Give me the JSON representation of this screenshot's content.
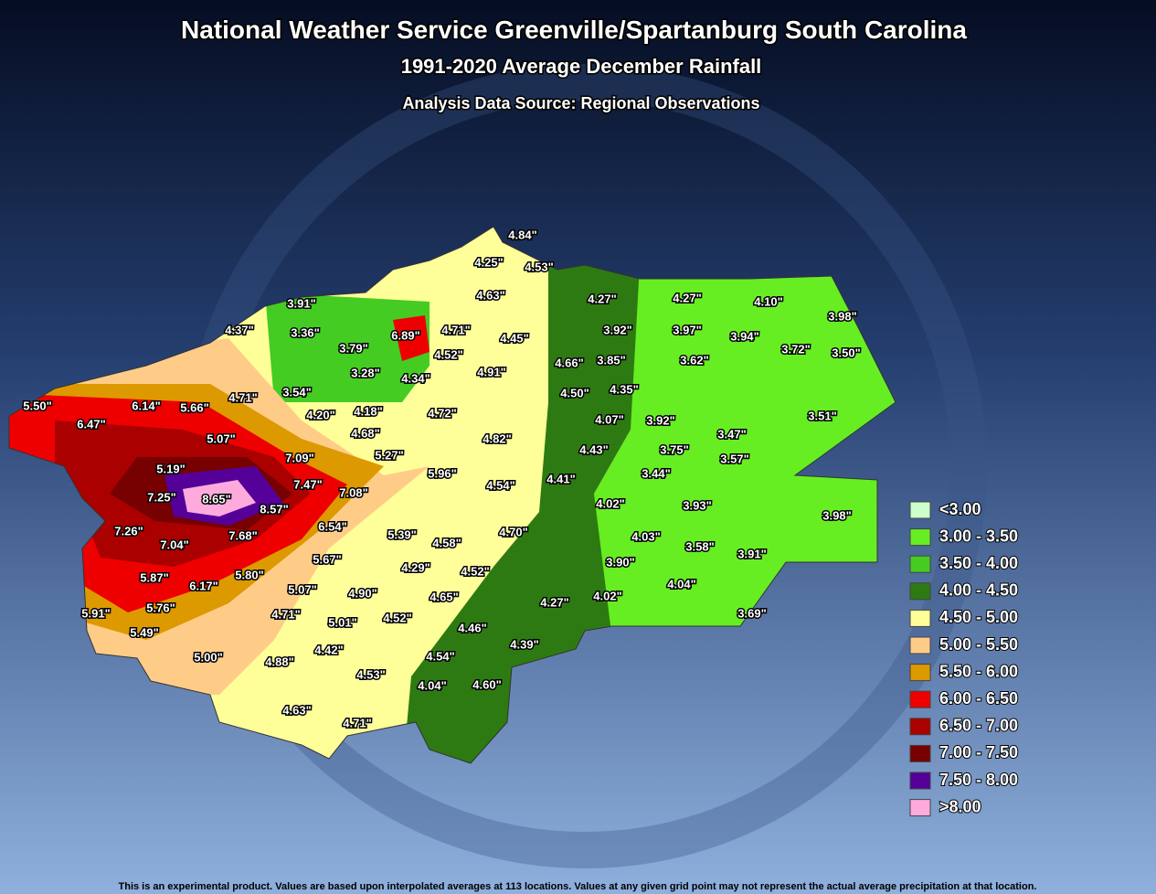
{
  "header": {
    "title": "National Weather Service Greenville/Spartanburg South Carolina",
    "subtitle": "1991-2020 Average December Rainfall",
    "source": "Analysis Data Source: Regional Observations"
  },
  "stations": [
    "4.84\"",
    "4.25\"",
    "4.53\"",
    "4.63\"",
    "4.27\"",
    "4.27\"",
    "4.10\"",
    "3.98\"",
    "3.91\"",
    "3.36\"",
    "6.89\"",
    "4.71\"",
    "3.92\"",
    "3.97\"",
    "3.94\"",
    "4.37\"",
    "3.79\"",
    "4.52\"",
    "4.45\"",
    "3.72\"",
    "3.50\"",
    "3.85\"",
    "3.62\"",
    "4.66\"",
    "3.28\"",
    "4.34\"",
    "4.91\"",
    "5.50\"",
    "6.14\"",
    "5.66\"",
    "4.71\"",
    "3.54\"",
    "4.50\"",
    "4.35\"",
    "4.18\"",
    "4.20\"",
    "4.72\"",
    "4.07\"",
    "3.92\"",
    "3.51\"",
    "6.47\"",
    "5.07\"",
    "4.68\"",
    "4.82\"",
    "3.47\"",
    "4.43\"",
    "3.75\"",
    "3.57\"",
    "7.09\"",
    "5.27\"",
    "5.19\"",
    "7.47\"",
    "5.96\"",
    "3.44\"",
    "4.41\"",
    "4.54\"",
    "7.25\"",
    "8.65\"",
    "8.57\"",
    "7.08\"",
    "4.02\"",
    "3.93\"",
    "3.98\"",
    "7.26\"",
    "6.54\"",
    "5.39\"",
    "4.70\"",
    "7.04\"",
    "7.68\"",
    "4.03\"",
    "4.58\"",
    "3.58\"",
    "3.91\"",
    "5.67\"",
    "3.90\"",
    "5.87\"",
    "5.80\"",
    "4.29\"",
    "4.52\"",
    "6.17\"",
    "5.07\"",
    "4.04\"",
    "4.90\"",
    "4.65\"",
    "4.27\"",
    "4.02\"",
    "5.91\"",
    "5.76\"",
    "4.71\"",
    "5.01\"",
    "4.52\"",
    "3.69\"",
    "4.46\"",
    "5.49\"",
    "4.39\"",
    "5.00\"",
    "4.88\"",
    "4.42\"",
    "4.54\"",
    "4.53\"",
    "4.04\"",
    "4.60\"",
    "4.63\"",
    "4.71\""
  ],
  "legend": [
    {
      "label": "<3.00",
      "color": "#ccffcc"
    },
    {
      "label": "3.00 - 3.50",
      "color": "#66ee22"
    },
    {
      "label": "3.50 - 4.00",
      "color": "#44cc22"
    },
    {
      "label": "4.00 - 4.50",
      "color": "#2e7a12"
    },
    {
      "label": "4.50 - 5.00",
      "color": "#ffff99"
    },
    {
      "label": "5.00 - 5.50",
      "color": "#ffcc88"
    },
    {
      "label": "5.50 - 6.00",
      "color": "#dd9900"
    },
    {
      "label": "6.00 - 6.50",
      "color": "#ee0000"
    },
    {
      "label": "6.50 - 7.00",
      "color": "#aa0000"
    },
    {
      "label": "7.00 - 7.50",
      "color": "#770000"
    },
    {
      "label": "7.50 - 8.00",
      "color": "#550099"
    },
    {
      "label": ">8.00",
      "color": "#ffaadd"
    }
  ],
  "footer": "This is an experimental product. Values are based upon  interpolated averages at 113 locations. Values at any given grid point may not represent the actual average precipitation at that location."
}
